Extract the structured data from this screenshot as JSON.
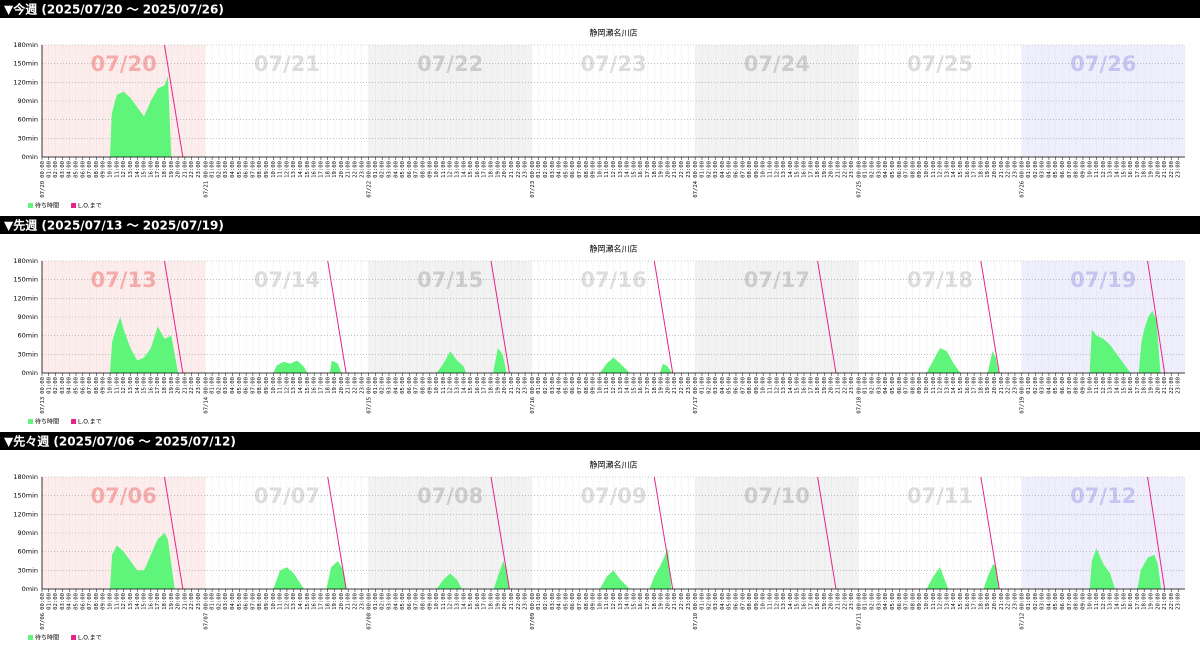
{
  "sections": [
    {
      "heading": "▼今週 (2025/07/20 ～ 2025/07/26)"
    },
    {
      "heading": "▼先週 (2025/07/13 ～ 2025/07/19)"
    },
    {
      "heading": "▼先々週 (2025/07/06 ～ 2025/07/12)"
    }
  ],
  "hour_labels": [
    "00:00",
    "01:00",
    "02:00",
    "03:00",
    "04:00",
    "05:00",
    "06:00",
    "07:00",
    "08:00",
    "09:00",
    "10:00",
    "11:00",
    "12:00",
    "13:00",
    "14:00",
    "15:00",
    "16:00",
    "17:00",
    "18:00",
    "19:00",
    "20:00",
    "21:00",
    "22:00",
    "23:00"
  ],
  "day_backgrounds": [
    "#fdecec",
    "#ffffff",
    "#f2f2f2",
    "#ffffff",
    "#f2f2f2",
    "#ffffff",
    "#eeeefd"
  ],
  "day_label_colors": [
    "#f6a9a9",
    "#dddddd",
    "#cccccc",
    "#dddddd",
    "#cccccc",
    "#dddddd",
    "#c4c4f2"
  ],
  "chart_data": [
    {
      "type": "area",
      "title": "静岡瀬名川店",
      "days": [
        "07/20",
        "07/21",
        "07/22",
        "07/23",
        "07/24",
        "07/25",
        "07/26"
      ],
      "xlim": [
        0,
        168
      ],
      "ylim": [
        0,
        180
      ],
      "yticks": [
        {
          "value": 0,
          "label": "0min"
        },
        {
          "value": 30,
          "label": "30min"
        },
        {
          "value": 60,
          "label": "60min"
        },
        {
          "value": 90,
          "label": "90min"
        },
        {
          "value": 120,
          "label": "120min"
        },
        {
          "value": 150,
          "label": "150min"
        },
        {
          "value": 180,
          "label": "180min"
        }
      ],
      "grid": true,
      "series": [
        {
          "name": "待ち時間",
          "type": "area",
          "color": "#5ef57a",
          "x": [
            10,
            10.25,
            11,
            12,
            13,
            14,
            15,
            16,
            17,
            18,
            18.5,
            19
          ],
          "values": [
            0,
            70,
            100,
            105,
            95,
            80,
            65,
            90,
            110,
            115,
            130,
            0
          ]
        },
        {
          "name": "L.O.まで",
          "type": "line",
          "color": "#e8258a",
          "x": [
            18,
            20.7
          ],
          "values": [
            180,
            0
          ]
        }
      ]
    },
    {
      "type": "area",
      "title": "静岡瀬名川店",
      "days": [
        "07/13",
        "07/14",
        "07/15",
        "07/16",
        "07/17",
        "07/18",
        "07/19"
      ],
      "xlim": [
        0,
        168
      ],
      "ylim": [
        0,
        180
      ],
      "yticks": [
        {
          "value": 0,
          "label": "0min"
        },
        {
          "value": 30,
          "label": "30min"
        },
        {
          "value": 60,
          "label": "60min"
        },
        {
          "value": 90,
          "label": "90min"
        },
        {
          "value": 120,
          "label": "120min"
        },
        {
          "value": 150,
          "label": "150min"
        },
        {
          "value": 180,
          "label": "180min"
        }
      ],
      "grid": true,
      "series": [
        {
          "name": "待ち時間",
          "type": "area",
          "color": "#5ef57a",
          "x": [
            10,
            10.3,
            11,
            11.5,
            12,
            13,
            14,
            15,
            16,
            17,
            17.5,
            18,
            19,
            19.5,
            20,
            null,
            34,
            34.5,
            35.5,
            36.5,
            37.5,
            38.5,
            39,
            null,
            42.3,
            42.6,
            43.5,
            44,
            null,
            58,
            59,
            60,
            61,
            62,
            62.3,
            null,
            66.3,
            67,
            67.7,
            68.3,
            null,
            82,
            83,
            84,
            85,
            86.4,
            null,
            90.8,
            91.3,
            92,
            92.6,
            null,
            130,
            131,
            132,
            133,
            134,
            135,
            null,
            139,
            139.7,
            140.2,
            140.6,
            null,
            154,
            154.3,
            155,
            156,
            157,
            158,
            159,
            160,
            null,
            161.2,
            161.6,
            162,
            162.6,
            163.2,
            163.8,
            164.4
          ],
          "values": [
            0,
            50,
            75,
            90,
            70,
            40,
            20,
            25,
            40,
            75,
            65,
            55,
            60,
            30,
            0,
            null,
            0,
            12,
            18,
            15,
            20,
            10,
            0,
            null,
            0,
            20,
            15,
            0,
            null,
            0,
            15,
            35,
            20,
            10,
            0,
            null,
            0,
            40,
            30,
            0,
            null,
            0,
            15,
            25,
            15,
            0,
            null,
            0,
            15,
            10,
            0,
            null,
            0,
            20,
            40,
            35,
            15,
            0,
            null,
            0,
            35,
            25,
            0,
            null,
            0,
            70,
            60,
            55,
            45,
            30,
            15,
            0,
            null,
            0,
            50,
            70,
            90,
            100,
            85,
            0
          ]
        },
        {
          "name": "L.O.まで",
          "type": "line",
          "color": "#e8258a",
          "x": [
            18,
            20.7,
            null,
            42,
            44.7,
            null,
            66,
            68.7,
            null,
            90,
            92.7,
            null,
            114,
            116.7,
            null,
            138,
            140.7,
            null,
            162.5,
            165
          ],
          "values": [
            180,
            0,
            null,
            180,
            0,
            null,
            180,
            0,
            null,
            180,
            0,
            null,
            180,
            0,
            null,
            180,
            0,
            null,
            180,
            0
          ]
        }
      ]
    },
    {
      "type": "area",
      "title": "静岡瀬名川店",
      "days": [
        "07/06",
        "07/07",
        "07/08",
        "07/09",
        "07/10",
        "07/11",
        "07/12"
      ],
      "xlim": [
        0,
        168
      ],
      "ylim": [
        0,
        180
      ],
      "yticks": [
        {
          "value": 0,
          "label": "0min"
        },
        {
          "value": 30,
          "label": "30min"
        },
        {
          "value": 60,
          "label": "60min"
        },
        {
          "value": 90,
          "label": "90min"
        },
        {
          "value": 120,
          "label": "120min"
        },
        {
          "value": 150,
          "label": "150min"
        },
        {
          "value": 180,
          "label": "180min"
        }
      ],
      "grid": true,
      "series": [
        {
          "name": "待ち時間",
          "type": "area",
          "color": "#5ef57a",
          "x": [
            10,
            10.3,
            11,
            12,
            13,
            14,
            15,
            16,
            17,
            18,
            18.5,
            19,
            19.5,
            null,
            34,
            35,
            36,
            37,
            38.5,
            null,
            41.8,
            42.5,
            43.5,
            44.3,
            44.8,
            null,
            58,
            59,
            60,
            61,
            61.7,
            null,
            66.4,
            67,
            67.8,
            68.3,
            68.7,
            null,
            82,
            83,
            84,
            85,
            86.4,
            null,
            89.3,
            90,
            91,
            92,
            92.5,
            null,
            130,
            131,
            132,
            133.2,
            null,
            138.4,
            139,
            139.8,
            140.3,
            140.6,
            null,
            154,
            154.3,
            155,
            156,
            157,
            157.7,
            null,
            161,
            161.5,
            162.5,
            163.5,
            164,
            164.5
          ],
          "values": [
            0,
            55,
            70,
            60,
            45,
            30,
            30,
            55,
            80,
            90,
            80,
            40,
            0,
            null,
            0,
            30,
            35,
            25,
            0,
            null,
            0,
            35,
            45,
            30,
            0,
            null,
            0,
            15,
            25,
            15,
            0,
            null,
            0,
            20,
            45,
            30,
            0,
            null,
            0,
            20,
            30,
            15,
            0,
            null,
            0,
            20,
            40,
            65,
            0,
            null,
            0,
            20,
            35,
            0,
            null,
            0,
            20,
            40,
            35,
            0,
            null,
            0,
            45,
            65,
            40,
            25,
            0,
            null,
            0,
            30,
            50,
            55,
            40,
            0
          ]
        },
        {
          "name": "L.O.まで",
          "type": "line",
          "color": "#e8258a",
          "x": [
            18,
            20.7,
            null,
            42,
            44.7,
            null,
            66,
            68.7,
            null,
            90,
            92.7,
            null,
            114,
            116.7,
            null,
            138,
            140.7,
            null,
            162.5,
            165
          ],
          "values": [
            180,
            0,
            null,
            180,
            0,
            null,
            180,
            0,
            null,
            180,
            0,
            null,
            180,
            0,
            null,
            180,
            0,
            null,
            180,
            0
          ]
        }
      ]
    }
  ]
}
